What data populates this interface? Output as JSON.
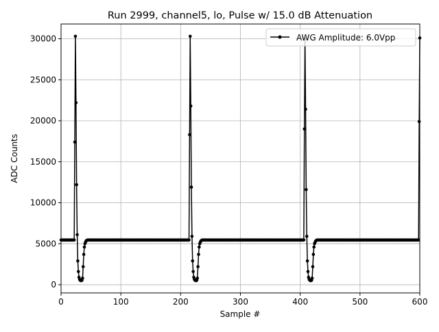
{
  "chart_data": {
    "type": "line",
    "title": "Run 2999, channel5, lo, Pulse w/ 15.0 dB Attenuation",
    "xlabel": "Sample #",
    "ylabel": "ADC Counts",
    "xlim": [
      0,
      600
    ],
    "ylim": [
      -1000,
      31800
    ],
    "xticks": [
      0,
      100,
      200,
      300,
      400,
      500,
      600
    ],
    "yticks": [
      0,
      5000,
      10000,
      15000,
      20000,
      25000,
      30000
    ],
    "grid": true,
    "legend": {
      "placement": "top-right",
      "entries": [
        "AWG Amplitude: 6.0Vpp"
      ]
    },
    "series": [
      {
        "name": "AWG Amplitude: 6.0Vpp",
        "color": "#000000",
        "marker": "circle",
        "x_range": [
          0,
          600
        ],
        "baseline": 5450,
        "pulses": [
          {
            "start": 23,
            "values": [
              17400,
              30300,
              22200,
              12200,
              6100,
              2900,
              1600,
              900,
              650,
              550,
              500,
              500,
              550,
              800,
              2200,
              3700,
              4600,
              5000,
              5200,
              5350,
              5400
            ]
          },
          {
            "start": 215,
            "values": [
              18300,
              30300,
              21800,
              11900,
              5900,
              2900,
              1600,
              900,
              650,
              550,
              500,
              500,
              550,
              800,
              2200,
              3700,
              4600,
              5000,
              5200,
              5350,
              5400
            ]
          },
          {
            "start": 407,
            "values": [
              19000,
              30000,
              21400,
              11600,
              5900,
              2900,
              1600,
              900,
              650,
              550,
              500,
              500,
              550,
              800,
              2200,
              3700,
              4600,
              5000,
              5200,
              5350,
              5400
            ]
          },
          {
            "start": 599,
            "values": [
              19900,
              30100
            ]
          }
        ]
      }
    ]
  }
}
